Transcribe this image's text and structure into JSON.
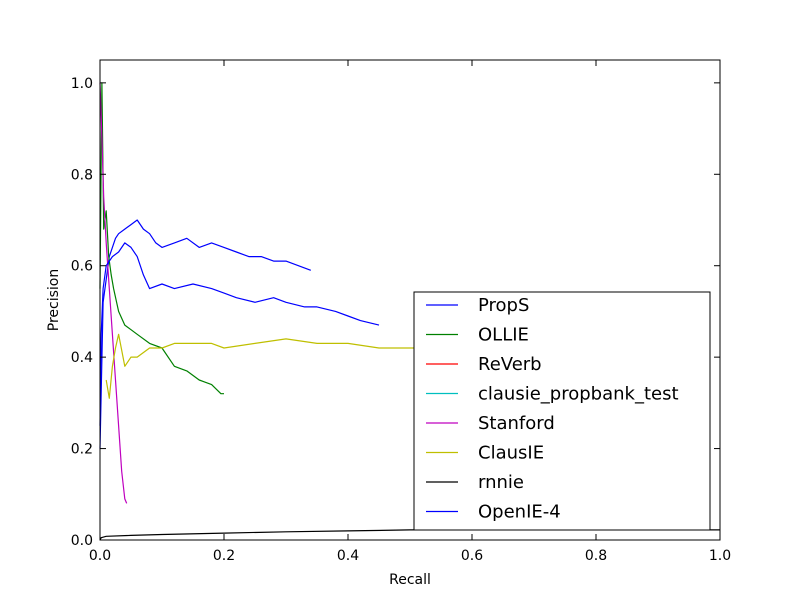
{
  "chart_data": {
    "type": "line",
    "xlabel": "Recall",
    "ylabel": "Precision",
    "xlim": [
      0.0,
      1.0
    ],
    "ylim": [
      0.0,
      1.05
    ],
    "xticks": [
      "0.0",
      "0.2",
      "0.4",
      "0.6",
      "0.8",
      "1.0"
    ],
    "yticks": [
      "0.0",
      "0.2",
      "0.4",
      "0.6",
      "0.8",
      "1.0"
    ],
    "grid": false,
    "legend_position": "lower-right",
    "series": [
      {
        "name": "PropS",
        "color": "#0000ff",
        "x": [
          0.0,
          0.005,
          0.01,
          0.015,
          0.02,
          0.025,
          0.03,
          0.04,
          0.05,
          0.06,
          0.07,
          0.08,
          0.09,
          0.1,
          0.12,
          0.14,
          0.16,
          0.18,
          0.2,
          0.22,
          0.24,
          0.26,
          0.28,
          0.3,
          0.32,
          0.34
        ],
        "y": [
          0.2,
          0.52,
          0.57,
          0.62,
          0.64,
          0.66,
          0.67,
          0.68,
          0.69,
          0.7,
          0.68,
          0.67,
          0.65,
          0.64,
          0.65,
          0.66,
          0.64,
          0.65,
          0.64,
          0.63,
          0.62,
          0.62,
          0.61,
          0.61,
          0.6,
          0.59
        ]
      },
      {
        "name": "OLLIE",
        "color": "#008000",
        "x": [
          0.0,
          0.003,
          0.006,
          0.01,
          0.014,
          0.018,
          0.022,
          0.03,
          0.04,
          0.05,
          0.06,
          0.08,
          0.1,
          0.12,
          0.14,
          0.16,
          0.18,
          0.195,
          0.2
        ],
        "y": [
          0.55,
          1.0,
          0.68,
          0.72,
          0.62,
          0.58,
          0.55,
          0.5,
          0.47,
          0.46,
          0.45,
          0.43,
          0.42,
          0.38,
          0.37,
          0.35,
          0.34,
          0.32,
          0.32
        ]
      },
      {
        "name": "ReVerb",
        "color": "#ff0000",
        "x": [],
        "y": []
      },
      {
        "name": "clausie_propbank_test",
        "color": "#00bfbf",
        "x": [],
        "y": []
      },
      {
        "name": "Stanford",
        "color": "#bf00bf",
        "x": [
          0.0,
          0.003,
          0.006,
          0.01,
          0.015,
          0.02,
          0.025,
          0.03,
          0.035,
          0.04,
          0.043
        ],
        "y": [
          1.0,
          0.88,
          0.75,
          0.65,
          0.55,
          0.45,
          0.35,
          0.25,
          0.15,
          0.09,
          0.08
        ]
      },
      {
        "name": "ClausIE",
        "color": "#bfbf00",
        "x": [
          0.01,
          0.015,
          0.02,
          0.025,
          0.03,
          0.04,
          0.05,
          0.06,
          0.08,
          0.1,
          0.12,
          0.15,
          0.18,
          0.2,
          0.25,
          0.3,
          0.35,
          0.4,
          0.45,
          0.5,
          0.52
        ],
        "y": [
          0.35,
          0.31,
          0.38,
          0.42,
          0.45,
          0.38,
          0.4,
          0.4,
          0.42,
          0.42,
          0.43,
          0.43,
          0.43,
          0.42,
          0.43,
          0.44,
          0.43,
          0.43,
          0.42,
          0.42,
          0.42
        ]
      },
      {
        "name": "rnnie",
        "color": "#000000",
        "x": [
          0.0,
          0.002,
          0.01,
          0.05,
          0.1,
          0.2,
          0.3,
          0.4,
          0.5,
          0.6,
          0.7,
          0.8,
          0.9,
          1.0
        ],
        "y": [
          0.0,
          0.005,
          0.008,
          0.01,
          0.012,
          0.015,
          0.018,
          0.02,
          0.022,
          0.022,
          0.022,
          0.022,
          0.022,
          0.022
        ]
      },
      {
        "name": "OpenIE-4",
        "color": "#0000ff",
        "x": [
          0.0,
          0.002,
          0.005,
          0.01,
          0.02,
          0.03,
          0.04,
          0.05,
          0.06,
          0.07,
          0.08,
          0.1,
          0.12,
          0.15,
          0.18,
          0.2,
          0.22,
          0.25,
          0.28,
          0.3,
          0.33,
          0.35,
          0.38,
          0.4,
          0.42,
          0.45
        ],
        "y": [
          0.25,
          0.45,
          0.55,
          0.6,
          0.62,
          0.63,
          0.65,
          0.64,
          0.62,
          0.58,
          0.55,
          0.56,
          0.55,
          0.56,
          0.55,
          0.54,
          0.53,
          0.52,
          0.53,
          0.52,
          0.51,
          0.51,
          0.5,
          0.49,
          0.48,
          0.47
        ]
      }
    ]
  }
}
